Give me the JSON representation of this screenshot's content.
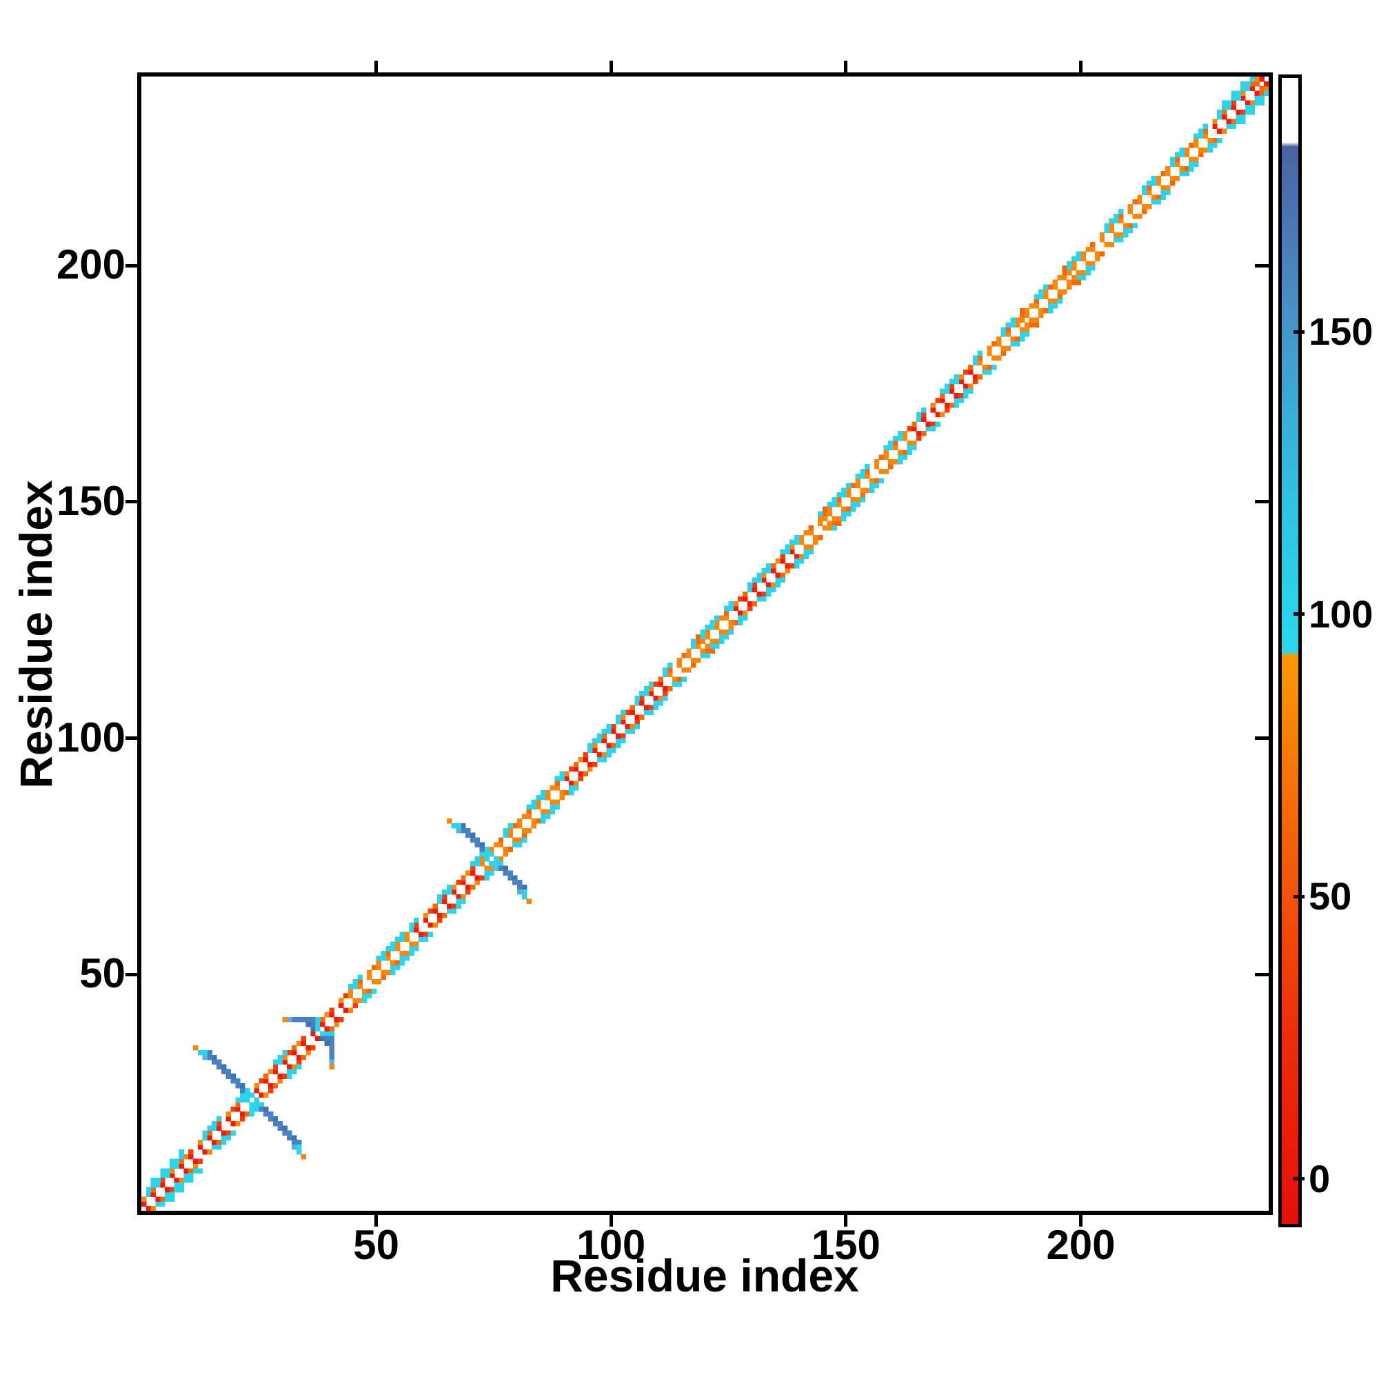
{
  "page": {
    "background": "#ffffff"
  },
  "axes": {
    "xlabel": "Residue index",
    "ylabel": "Residue index",
    "x_ticks": [
      50,
      100,
      150,
      200
    ],
    "y_ticks": [
      50,
      100,
      150,
      200
    ],
    "range": [
      0,
      240
    ]
  },
  "colorbar": {
    "ticks": [
      0,
      50,
      100,
      150
    ],
    "value_range": [
      -8,
      195
    ],
    "stops": [
      {
        "pct": 0,
        "color": "#ffffff"
      },
      {
        "pct": 5.6,
        "color": "#ffffff"
      },
      {
        "pct": 6.0,
        "color": "#4a63a0"
      },
      {
        "pct": 12,
        "color": "#4a74b4"
      },
      {
        "pct": 20,
        "color": "#4690c6"
      },
      {
        "pct": 28,
        "color": "#3aaad6"
      },
      {
        "pct": 36,
        "color": "#2fc0e2"
      },
      {
        "pct": 44,
        "color": "#2bcfea"
      },
      {
        "pct": 50.1,
        "color": "#2ad8ee"
      },
      {
        "pct": 50.4,
        "color": "#fb9807"
      },
      {
        "pct": 56,
        "color": "#f98408"
      },
      {
        "pct": 64,
        "color": "#f66906"
      },
      {
        "pct": 74,
        "color": "#f24a06"
      },
      {
        "pct": 84,
        "color": "#ed2c09"
      },
      {
        "pct": 100,
        "color": "#e41008"
      }
    ]
  },
  "chart_data": {
    "type": "heatmap",
    "title": "",
    "xlabel": "Residue index",
    "ylabel": "Residue index",
    "n_residues": 240,
    "x_ticks": [
      50,
      100,
      150,
      200
    ],
    "y_ticks": [
      50,
      100,
      150,
      200
    ],
    "axis_range": [
      0,
      240
    ],
    "grid": false,
    "description": "Symmetric residue-residue contact map: braided red/orange short-range contacts hug the main diagonal, short cyan runs flank it at medium range, and steel-blue anti-diagonal hairpin crosses appear near residues 23, 37 and 74; values colored 0-190 per the right-hand colorbar.",
    "palette": {
      "R": "#ee1b08",
      "R2": "#f23e04",
      "O": "#f8870b",
      "O2": "#f46806",
      "C": "#2dd3ea",
      "B": "#4a82c1",
      "B2": "#3f72b0",
      "LB": "#55b4da"
    },
    "red_segments": [
      [
        0,
        44
      ],
      [
        58,
        72
      ],
      [
        90,
        112
      ],
      [
        126,
        140
      ],
      [
        163,
        177
      ],
      [
        228,
        240
      ]
    ],
    "cyan_runs": [
      [
        1,
        8,
        1
      ],
      [
        13,
        4,
        0
      ],
      [
        20,
        2,
        0
      ],
      [
        28,
        3,
        0
      ],
      [
        36,
        2,
        0
      ],
      [
        44,
        3,
        0
      ],
      [
        50,
        6,
        0
      ],
      [
        57,
        2,
        0
      ],
      [
        63,
        3,
        0
      ],
      [
        70,
        3,
        0
      ],
      [
        77,
        2,
        0
      ],
      [
        82,
        4,
        0
      ],
      [
        88,
        2,
        0
      ],
      [
        95,
        5,
        0
      ],
      [
        101,
        2,
        0
      ],
      [
        105,
        4,
        0
      ],
      [
        111,
        2,
        0
      ],
      [
        117,
        6,
        0
      ],
      [
        124,
        2,
        0
      ],
      [
        129,
        5,
        0
      ],
      [
        136,
        4,
        0
      ],
      [
        144,
        7,
        0
      ],
      [
        152,
        3,
        0
      ],
      [
        158,
        4,
        0
      ],
      [
        165,
        2,
        0
      ],
      [
        170,
        4,
        0
      ],
      [
        177,
        2,
        0
      ],
      [
        183,
        3,
        0
      ],
      [
        190,
        3,
        0
      ],
      [
        197,
        3,
        0
      ],
      [
        205,
        4,
        0
      ],
      [
        213,
        3,
        0
      ],
      [
        219,
        3,
        0
      ],
      [
        224,
        3,
        0
      ],
      [
        229,
        9,
        1
      ]
    ],
    "orange_blobs": [
      118,
      145,
      187,
      196
    ],
    "hairpins": [
      {
        "center": 23,
        "arm": 9,
        "type": "X"
      },
      {
        "center": 37,
        "arm": 4,
        "type": "bar"
      },
      {
        "center": 74,
        "arm": 6,
        "type": "X"
      }
    ]
  }
}
